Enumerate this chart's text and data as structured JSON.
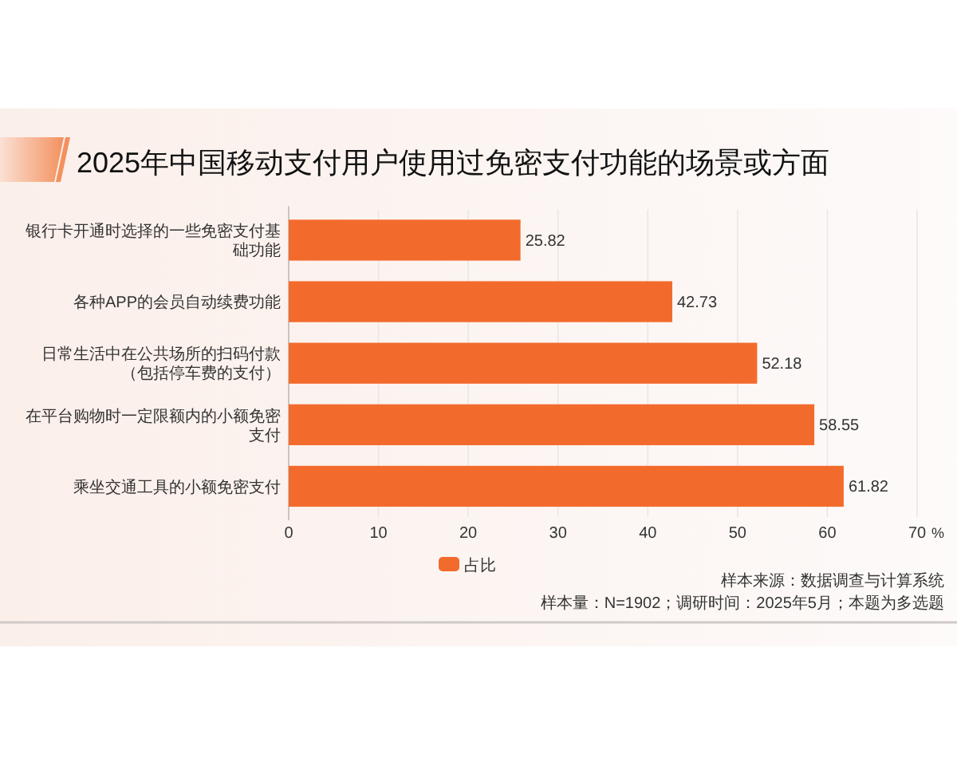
{
  "chart_data": {
    "type": "bar",
    "orientation": "horizontal",
    "title": "2025年中国移动支付用户使用过免密支付功能的场景或方面",
    "categories": [
      "银行卡开通时选择的一些免密支付基础功能",
      "各种APP的会员自动续费功能",
      "日常生活中在公共场所的扫码付款（包括停车费的支付）",
      "在平台购物时一定限额内的小额免密支付",
      "乘坐交通工具的小额免密支付"
    ],
    "series": [
      {
        "name": "占比",
        "color": "#f36b2c",
        "values": [
          25.82,
          42.73,
          52.18,
          58.55,
          61.82
        ]
      }
    ],
    "xlim": [
      0,
      70
    ],
    "xticks": [
      0,
      10,
      20,
      30,
      40,
      50,
      60,
      70
    ],
    "xlabel": "%",
    "data_labels": true,
    "grid": "x",
    "legend": "bottom",
    "annotations": [
      "样本来源：数据调查与计算系统",
      "样本量：N=1902；调研时间：2025年5月；本题为多选题"
    ]
  }
}
